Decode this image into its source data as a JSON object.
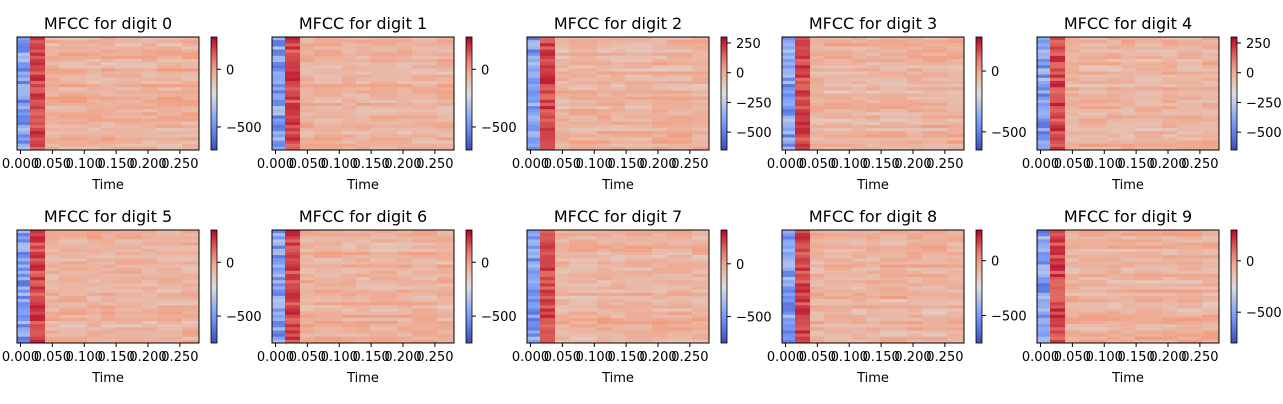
{
  "figure": {
    "xlabel": "Time"
  },
  "chart_data": [
    {
      "type": "heatmap",
      "title": "MFCC for digit 0",
      "xlabel": "Time",
      "x_ticks": [
        "0.000",
        "0.050",
        "0.100",
        "0.150",
        "0.200",
        "0.250"
      ],
      "x_range": [
        0.0,
        0.28
      ],
      "colorbar_ticks": [
        "0",
        "−500"
      ],
      "colorbar_range": [
        -700,
        280
      ],
      "colormap": "coolwarm"
    },
    {
      "type": "heatmap",
      "title": "MFCC for digit 1",
      "xlabel": "Time",
      "x_ticks": [
        "0.000",
        "0.050",
        "0.100",
        "0.150",
        "0.200",
        "0.250"
      ],
      "x_range": [
        0.0,
        0.28
      ],
      "colorbar_ticks": [
        "0",
        "−500"
      ],
      "colorbar_range": [
        -700,
        280
      ],
      "colormap": "coolwarm"
    },
    {
      "type": "heatmap",
      "title": "MFCC for digit 2",
      "xlabel": "Time",
      "x_ticks": [
        "0.000",
        "0.050",
        "0.100",
        "0.150",
        "0.200",
        "0.250"
      ],
      "x_range": [
        0.0,
        0.28
      ],
      "colorbar_ticks": [
        "250",
        "0",
        "−250",
        "−500"
      ],
      "colorbar_range": [
        -650,
        300
      ],
      "colormap": "coolwarm"
    },
    {
      "type": "heatmap",
      "title": "MFCC for digit 3",
      "xlabel": "Time",
      "x_ticks": [
        "0.000",
        "0.050",
        "0.100",
        "0.150",
        "0.200",
        "0.250"
      ],
      "x_range": [
        0.0,
        0.28
      ],
      "colorbar_ticks": [
        "0",
        "−500"
      ],
      "colorbar_range": [
        -650,
        280
      ],
      "colormap": "coolwarm"
    },
    {
      "type": "heatmap",
      "title": "MFCC for digit 4",
      "xlabel": "Time",
      "x_ticks": [
        "0.000",
        "0.050",
        "0.100",
        "0.150",
        "0.200",
        "0.250"
      ],
      "x_range": [
        0.0,
        0.28
      ],
      "colorbar_ticks": [
        "250",
        "0",
        "−250",
        "−500"
      ],
      "colorbar_range": [
        -650,
        300
      ],
      "colormap": "coolwarm"
    },
    {
      "type": "heatmap",
      "title": "MFCC for digit 5",
      "xlabel": "Time",
      "x_ticks": [
        "0.000",
        "0.050",
        "0.100",
        "0.150",
        "0.200",
        "0.250"
      ],
      "x_range": [
        0.0,
        0.28
      ],
      "colorbar_ticks": [
        "0",
        "−500"
      ],
      "colorbar_range": [
        -750,
        300
      ],
      "colormap": "coolwarm"
    },
    {
      "type": "heatmap",
      "title": "MFCC for digit 6",
      "xlabel": "Time",
      "x_ticks": [
        "0.000",
        "0.050",
        "0.100",
        "0.150",
        "0.200",
        "0.250"
      ],
      "x_range": [
        0.0,
        0.28
      ],
      "colorbar_ticks": [
        "0",
        "−500"
      ],
      "colorbar_range": [
        -750,
        300
      ],
      "colormap": "coolwarm"
    },
    {
      "type": "heatmap",
      "title": "MFCC for digit 7",
      "xlabel": "Time",
      "x_ticks": [
        "0.000",
        "0.050",
        "0.100",
        "0.150",
        "0.200",
        "0.250"
      ],
      "x_range": [
        0.0,
        0.28
      ],
      "colorbar_ticks": [
        "0",
        "−500"
      ],
      "colorbar_range": [
        -750,
        320
      ],
      "colormap": "coolwarm"
    },
    {
      "type": "heatmap",
      "title": "MFCC for digit 8",
      "xlabel": "Time",
      "x_ticks": [
        "0.000",
        "0.050",
        "0.100",
        "0.150",
        "0.200",
        "0.250"
      ],
      "x_range": [
        0.0,
        0.28
      ],
      "colorbar_ticks": [
        "0",
        "−500"
      ],
      "colorbar_range": [
        -750,
        280
      ],
      "colormap": "coolwarm"
    },
    {
      "type": "heatmap",
      "title": "MFCC for digit 9",
      "xlabel": "Time",
      "x_ticks": [
        "0.000",
        "0.050",
        "0.100",
        "0.150",
        "0.200",
        "0.250"
      ],
      "x_range": [
        0.0,
        0.28
      ],
      "colorbar_ticks": [
        "0",
        "−500"
      ],
      "colorbar_range": [
        -800,
        300
      ],
      "colormap": "coolwarm"
    }
  ]
}
